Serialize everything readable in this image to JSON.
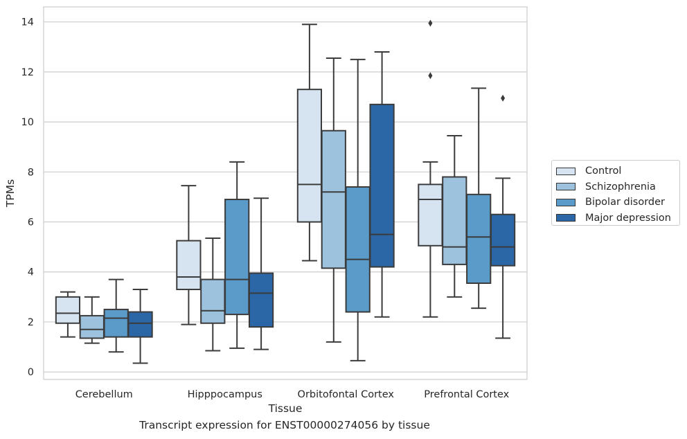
{
  "caption": "Transcript expression for ENST00000274056 by tissue",
  "chart_data": {
    "type": "box",
    "title": "",
    "xlabel": "Tissue",
    "ylabel": "TPMs",
    "categories": [
      "Cerebellum",
      "Hipppocampus",
      "Orbitofontal Cortex",
      "Prefrontal Cortex"
    ],
    "ylim": [
      -0.3,
      14.6
    ],
    "yticks": [
      0,
      2,
      4,
      6,
      8,
      10,
      12,
      14
    ],
    "grid": "horizontal",
    "legend_position": "right",
    "series": [
      {
        "name": "Control",
        "color": "#d6e4f2",
        "boxes": [
          {
            "whisker_low": 1.4,
            "q1": 1.95,
            "median": 2.35,
            "q3": 3.0,
            "whisker_high": 3.2,
            "outliers": []
          },
          {
            "whisker_low": 1.9,
            "q1": 3.3,
            "median": 3.8,
            "q3": 5.25,
            "whisker_high": 7.45,
            "outliers": []
          },
          {
            "whisker_low": 4.45,
            "q1": 6.0,
            "median": 7.5,
            "q3": 11.3,
            "whisker_high": 13.9,
            "outliers": []
          },
          {
            "whisker_low": 2.2,
            "q1": 5.05,
            "median": 6.9,
            "q3": 7.5,
            "whisker_high": 8.4,
            "outliers": [
              13.95,
              11.85
            ]
          }
        ]
      },
      {
        "name": "Schizophrenia",
        "color": "#9cc2de",
        "boxes": [
          {
            "whisker_low": 1.15,
            "q1": 1.35,
            "median": 1.7,
            "q3": 2.25,
            "whisker_high": 3.0,
            "outliers": []
          },
          {
            "whisker_low": 0.85,
            "q1": 1.95,
            "median": 2.45,
            "q3": 3.7,
            "whisker_high": 5.35,
            "outliers": []
          },
          {
            "whisker_low": 1.2,
            "q1": 4.15,
            "median": 7.2,
            "q3": 9.65,
            "whisker_high": 12.55,
            "outliers": []
          },
          {
            "whisker_low": 3.0,
            "q1": 4.3,
            "median": 5.0,
            "q3": 7.8,
            "whisker_high": 9.45,
            "outliers": []
          }
        ]
      },
      {
        "name": "Bipolar disorder",
        "color": "#5a9bc9",
        "boxes": [
          {
            "whisker_low": 0.8,
            "q1": 1.4,
            "median": 2.15,
            "q3": 2.5,
            "whisker_high": 3.7,
            "outliers": []
          },
          {
            "whisker_low": 0.95,
            "q1": 2.3,
            "median": 3.7,
            "q3": 6.9,
            "whisker_high": 8.4,
            "outliers": []
          },
          {
            "whisker_low": 0.45,
            "q1": 2.4,
            "median": 4.5,
            "q3": 7.4,
            "whisker_high": 12.5,
            "outliers": []
          },
          {
            "whisker_low": 2.55,
            "q1": 3.55,
            "median": 5.4,
            "q3": 7.1,
            "whisker_high": 11.35,
            "outliers": []
          }
        ]
      },
      {
        "name": "Major depression",
        "color": "#2b66a6",
        "boxes": [
          {
            "whisker_low": 0.35,
            "q1": 1.4,
            "median": 1.95,
            "q3": 2.4,
            "whisker_high": 3.3,
            "outliers": []
          },
          {
            "whisker_low": 0.9,
            "q1": 1.8,
            "median": 3.15,
            "q3": 3.95,
            "whisker_high": 6.95,
            "outliers": []
          },
          {
            "whisker_low": 2.2,
            "q1": 4.2,
            "median": 5.5,
            "q3": 10.7,
            "whisker_high": 12.8,
            "outliers": []
          },
          {
            "whisker_low": 1.35,
            "q1": 4.25,
            "median": 5.0,
            "q3": 6.3,
            "whisker_high": 7.75,
            "outliers": [
              10.95
            ]
          }
        ]
      }
    ]
  }
}
